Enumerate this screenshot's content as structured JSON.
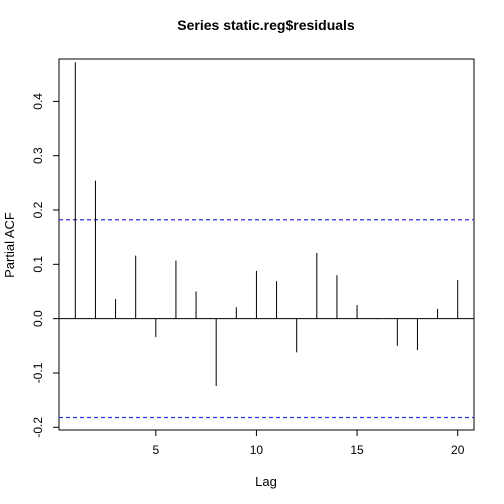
{
  "chart_data": {
    "type": "bar",
    "title": "Series  static.reg$residuals",
    "xlabel": "Lag",
    "ylabel": "Partial ACF",
    "x": [
      1,
      2,
      3,
      4,
      5,
      6,
      7,
      8,
      9,
      10,
      11,
      12,
      13,
      14,
      15,
      16,
      17,
      18,
      19,
      20
    ],
    "values": [
      0.472,
      0.254,
      0.036,
      0.116,
      -0.034,
      0.107,
      0.05,
      -0.124,
      0.021,
      0.088,
      0.069,
      -0.062,
      0.121,
      0.08,
      0.025,
      -0.001,
      -0.05,
      -0.058,
      0.018,
      0.071
    ],
    "xlim": [
      0.19,
      20.81
    ],
    "ylim": [
      -0.205,
      0.478
    ],
    "xticks": [
      "5",
      "10",
      "15",
      "20"
    ],
    "yticks": [
      "-0.2",
      "-0.1",
      "0.0",
      "0.1",
      "0.2",
      "0.3",
      "0.4"
    ],
    "confidence_bound": 0.182,
    "grid": false,
    "colors": {
      "bars": "#000000",
      "bounds": "#3333dd",
      "zero_line": "#000000"
    }
  }
}
